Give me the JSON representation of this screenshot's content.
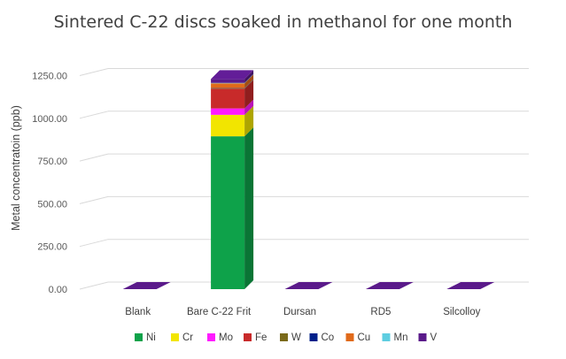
{
  "chart_data": {
    "type": "bar",
    "stacked": true,
    "three_d": true,
    "title": "Sintered C-22 discs soaked in methanol for one month",
    "xlabel": "",
    "ylabel": "Metal concentratoin (ppb)",
    "ylim": [
      0,
      1250
    ],
    "yticks": [
      "0.00",
      "250.00",
      "500.00",
      "750.00",
      "1000.00",
      "1250.00"
    ],
    "grid": true,
    "legend_position": "bottom",
    "categories": [
      "Blank",
      "Bare C-22 Frit",
      "Dursan",
      "RD5",
      "Silcolloy"
    ],
    "series": [
      {
        "name": "Ni",
        "color": "#0ea24a",
        "values": [
          0,
          895,
          0,
          0,
          0
        ]
      },
      {
        "name": "Cr",
        "color": "#f2e500",
        "values": [
          0,
          125,
          0,
          0,
          0
        ]
      },
      {
        "name": "Mo",
        "color": "#ff1aff",
        "values": [
          0,
          38,
          0,
          0,
          0
        ]
      },
      {
        "name": "Fe",
        "color": "#c82a2a",
        "values": [
          0,
          115,
          0,
          0,
          0
        ]
      },
      {
        "name": "W",
        "color": "#7a6a1a",
        "values": [
          0,
          2,
          0,
          0,
          0
        ]
      },
      {
        "name": "Co",
        "color": "#00208a",
        "values": [
          0,
          2,
          0,
          0,
          0
        ]
      },
      {
        "name": "Cu",
        "color": "#e06a1a",
        "values": [
          0,
          28,
          0,
          0,
          0
        ]
      },
      {
        "name": "Mn",
        "color": "#5ecde0",
        "values": [
          0,
          2,
          0,
          0,
          0
        ]
      },
      {
        "name": "V",
        "color": "#5a1a8a",
        "values": [
          0,
          23,
          0,
          0,
          0
        ]
      }
    ]
  }
}
